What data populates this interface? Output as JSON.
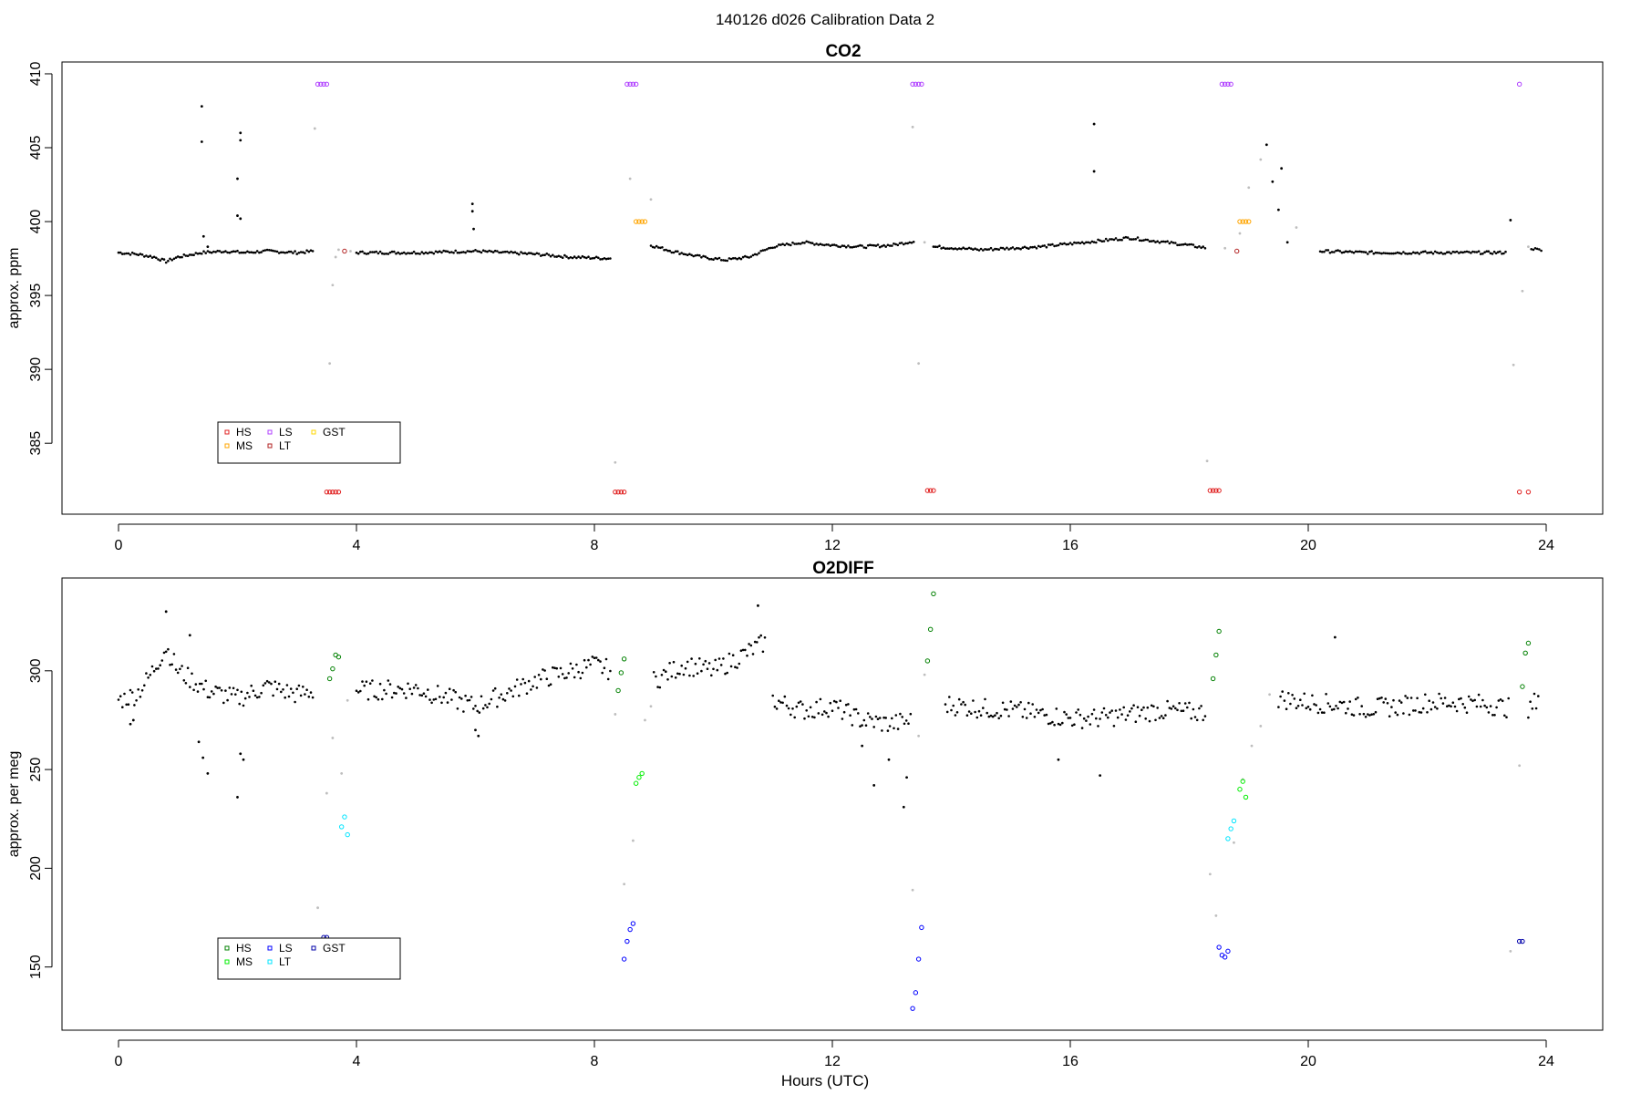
{
  "figure_title": "140126   d026   Calibration Data 2",
  "colors": {
    "ambient": "#000000",
    "transition": "#bebebe",
    "HS_co2": "#e02020",
    "MS_co2": "#ffa500",
    "LS_co2": "#b040ff",
    "LT_co2": "#b22222",
    "GST_co2": "#ffd700",
    "HS_o2": "#008000",
    "MS_o2": "#00ee00",
    "LS_o2": "#0000ff",
    "LT_o2": "#00e5ff",
    "GST_o2": "#0000aa"
  },
  "chart_data": [
    {
      "type": "scatter",
      "title": "CO2",
      "xlabel": "",
      "ylabel": "approx. ppm",
      "xlim": [
        -0.95,
        24.95
      ],
      "ylim": [
        380.2,
        410.8
      ],
      "xticks": [
        0,
        4,
        8,
        12,
        16,
        20,
        24
      ],
      "yticks": [
        385,
        390,
        395,
        400,
        405,
        410
      ],
      "legend": {
        "placement": "bottom-left",
        "entries": [
          "HS",
          "MS",
          "LS",
          "LT",
          "GST"
        ]
      },
      "ambient_segments": [
        {
          "x": [
            0.0,
            0.3,
            0.6,
            0.8,
            1.0,
            1.4,
            1.8,
            2.1,
            2.5,
            3.0,
            3.3
          ],
          "y": [
            397.9,
            397.8,
            397.6,
            397.3,
            397.6,
            397.9,
            398.0,
            397.9,
            398.0,
            397.9,
            398.0
          ]
        },
        {
          "x": [
            4.0,
            5.0,
            6.0,
            7.0,
            7.6,
            8.3
          ],
          "y": [
            397.9,
            397.9,
            398.0,
            397.8,
            397.6,
            397.5
          ]
        },
        {
          "x": [
            8.95,
            9.3,
            9.8,
            10.2,
            10.6,
            11.0,
            11.5,
            12.0,
            12.5,
            13.0,
            13.4
          ],
          "y": [
            398.4,
            398.0,
            397.6,
            397.4,
            397.6,
            398.3,
            398.6,
            398.4,
            398.3,
            398.4,
            398.7
          ]
        },
        {
          "x": [
            13.7,
            14.5,
            15.5,
            16.5,
            17.0,
            18.0,
            18.3
          ],
          "y": [
            398.3,
            398.1,
            398.3,
            398.7,
            398.9,
            398.4,
            398.2
          ]
        },
        {
          "x": [
            20.2,
            21.0,
            22.0,
            23.0,
            23.35
          ],
          "y": [
            398.0,
            397.9,
            397.9,
            397.9,
            397.9
          ]
        },
        {
          "x": [
            23.75,
            23.95
          ],
          "y": [
            398.2,
            398.0
          ]
        }
      ],
      "ambient_outliers": {
        "x": [
          1.4,
          1.4,
          1.43,
          1.5,
          2.0,
          2.05,
          2.05,
          2.0,
          2.05,
          5.95,
          5.95,
          5.97,
          16.4,
          16.4,
          19.3,
          19.4,
          19.55,
          19.5,
          19.65,
          23.4
        ],
        "y": [
          407.8,
          405.4,
          399.0,
          398.3,
          402.9,
          406.0,
          405.5,
          400.4,
          400.2,
          401.2,
          400.7,
          399.5,
          406.6,
          403.4,
          405.2,
          402.7,
          403.6,
          400.8,
          398.6,
          400.1
        ]
      },
      "transition": {
        "x": [
          3.3,
          3.55,
          3.6,
          3.65,
          3.7,
          3.9,
          8.35,
          8.6,
          8.95,
          13.35,
          13.45,
          13.55,
          18.3,
          18.6,
          18.85,
          19.0,
          19.2,
          19.8,
          23.45,
          23.6,
          23.7
        ],
        "y": [
          406.3,
          390.4,
          395.7,
          397.6,
          398.1,
          398.0,
          383.7,
          402.9,
          401.5,
          406.4,
          390.4,
          398.6,
          383.8,
          398.2,
          399.2,
          402.3,
          404.2,
          399.6,
          390.3,
          395.3,
          398.3
        ]
      },
      "cal_series": [
        {
          "name": "HS",
          "x": [
            3.5,
            3.55,
            3.6,
            3.65,
            3.7,
            8.35,
            8.4,
            8.45,
            8.5,
            13.6,
            13.65,
            13.7,
            18.35,
            18.4,
            18.45,
            18.5,
            23.55,
            23.7
          ],
          "y": [
            381.7,
            381.7,
            381.7,
            381.7,
            381.7,
            381.7,
            381.7,
            381.7,
            381.7,
            381.8,
            381.8,
            381.8,
            381.8,
            381.8,
            381.8,
            381.8,
            381.7,
            381.7
          ]
        },
        {
          "name": "MS",
          "x": [
            8.7,
            8.75,
            8.8,
            8.85,
            18.85,
            18.9,
            18.95,
            19.0
          ],
          "y": [
            400.0,
            400.0,
            400.0,
            400.0,
            400.0,
            400.0,
            400.0,
            400.0
          ]
        },
        {
          "name": "LS",
          "x": [
            3.35,
            3.4,
            3.45,
            3.5,
            8.55,
            8.6,
            8.65,
            8.7,
            13.35,
            13.4,
            13.45,
            13.5,
            18.55,
            18.6,
            18.65,
            18.7,
            23.55
          ],
          "y": [
            409.3,
            409.3,
            409.3,
            409.3,
            409.3,
            409.3,
            409.3,
            409.3,
            409.3,
            409.3,
            409.3,
            409.3,
            409.3,
            409.3,
            409.3,
            409.3,
            409.3
          ]
        },
        {
          "name": "LT",
          "x": [
            3.8,
            18.8
          ],
          "y": [
            398.0,
            398.0
          ]
        },
        {
          "name": "GST",
          "x": [],
          "y": []
        }
      ]
    },
    {
      "type": "scatter",
      "title": "O2DIFF",
      "xlabel": "Hours (UTC)",
      "ylabel": "approx. per meg",
      "xlim": [
        -0.95,
        24.95
      ],
      "ylim": [
        118,
        347
      ],
      "xticks": [
        0,
        4,
        8,
        12,
        16,
        20,
        24
      ],
      "yticks": [
        150,
        200,
        250,
        300
      ],
      "legend": {
        "placement": "bottom-left",
        "entries": [
          "HS",
          "MS",
          "LS",
          "LT",
          "GST"
        ]
      },
      "ambient_segments": [
        {
          "x": [
            0.0,
            0.3,
            0.5,
            0.8,
            1.0,
            1.5,
            2.0,
            2.5,
            3.0,
            3.3
          ],
          "y": [
            285,
            288,
            296,
            312,
            300,
            290,
            286,
            292,
            288,
            290
          ]
        },
        {
          "x": [
            4.0,
            5.0,
            6.0,
            7.0,
            8.0,
            8.3
          ],
          "y": [
            290,
            291,
            282,
            295,
            303,
            300
          ]
        },
        {
          "x": [
            9.0,
            9.5,
            10.0,
            10.5,
            10.9
          ],
          "y": [
            295,
            303,
            300,
            308,
            315
          ]
        },
        {
          "x": [
            11.0,
            11.5,
            12.0,
            12.5,
            13.0,
            13.35
          ],
          "y": [
            285,
            280,
            282,
            275,
            273,
            275
          ]
        },
        {
          "x": [
            13.9,
            14.5,
            15.0,
            15.5,
            16.0,
            16.5,
            17.0,
            17.5,
            18.0,
            18.3
          ],
          "y": [
            283,
            281,
            280,
            278,
            276,
            276,
            278,
            280,
            279,
            279
          ]
        },
        {
          "x": [
            19.5,
            20.0,
            20.5,
            21.0,
            21.5,
            22.0,
            22.5,
            23.0,
            23.4
          ],
          "y": [
            286,
            284,
            283,
            281,
            282,
            284,
            284,
            283,
            281
          ]
        },
        {
          "x": [
            23.7,
            23.9
          ],
          "y": [
            278,
            290
          ]
        }
      ],
      "ambient_outliers": {
        "x": [
          0.2,
          0.25,
          1.2,
          1.35,
          1.42,
          1.5,
          2.05,
          2.1,
          2.0,
          6.0,
          6.05,
          0.8,
          10.75,
          12.5,
          12.7,
          12.95,
          13.2,
          13.25,
          15.8,
          16.5,
          20.45
        ],
        "y": [
          273,
          275,
          318,
          264,
          256,
          248,
          258,
          255,
          236,
          270,
          267,
          330,
          333,
          262,
          242,
          255,
          231,
          246,
          255,
          247,
          317
        ]
      },
      "transition": {
        "x": [
          3.35,
          3.5,
          3.6,
          3.75,
          3.85,
          8.35,
          8.5,
          8.65,
          8.85,
          8.95,
          13.35,
          13.45,
          13.55,
          18.35,
          18.45,
          18.75,
          18.9,
          19.05,
          19.2,
          19.35,
          23.4,
          23.55
        ],
        "y": [
          180,
          238,
          266,
          248,
          285,
          278,
          192,
          214,
          275,
          282,
          189,
          267,
          298,
          197,
          176,
          213,
          245,
          262,
          272,
          288,
          158,
          252
        ]
      },
      "cal_series": [
        {
          "name": "HS",
          "x": [
            3.55,
            3.6,
            3.65,
            3.7,
            8.4,
            8.45,
            8.5,
            13.6,
            13.65,
            13.7,
            18.4,
            18.45,
            18.5,
            23.6,
            23.65,
            23.7
          ],
          "y": [
            296,
            301,
            308,
            307,
            290,
            299,
            306,
            305,
            321,
            339,
            296,
            308,
            320,
            292,
            309,
            314
          ]
        },
        {
          "name": "MS",
          "x": [
            8.7,
            8.75,
            8.8,
            18.85,
            18.9,
            18.95
          ],
          "y": [
            243,
            246,
            248,
            240,
            244,
            236
          ]
        },
        {
          "name": "LS",
          "x": [
            8.5,
            8.55,
            8.6,
            8.65,
            13.35,
            13.4,
            13.45,
            13.5,
            18.5,
            18.55,
            18.6,
            18.65
          ],
          "y": [
            154,
            163,
            169,
            172,
            129,
            137,
            154,
            170,
            160,
            156,
            155,
            158
          ]
        },
        {
          "name": "LT",
          "x": [
            3.75,
            3.8,
            3.85,
            18.65,
            18.7,
            18.75
          ],
          "y": [
            221,
            226,
            217,
            215,
            220,
            224
          ]
        },
        {
          "name": "GST",
          "x": [
            3.45,
            3.5,
            23.55,
            23.6
          ],
          "y": [
            165,
            165,
            163,
            163
          ]
        }
      ]
    }
  ]
}
